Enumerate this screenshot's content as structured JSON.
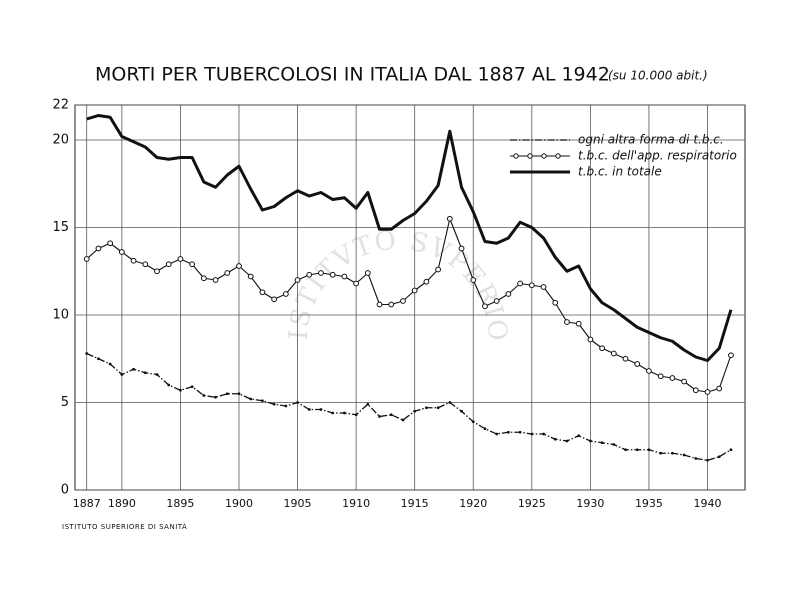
{
  "chart_data": {
    "type": "line",
    "title": "MORTI PER TUBERCOLOSI IN ITALIA DAL 1887 AL 1942",
    "subtitle": "(su 10.000 abit.)",
    "footer": "ISTITUTO SUPERIORE DI SANITÀ",
    "watermark": "ISTITVTO SVPERIORE DI SANITÀ",
    "x": [
      1887,
      1888,
      1889,
      1890,
      1891,
      1892,
      1893,
      1894,
      1895,
      1896,
      1897,
      1898,
      1899,
      1900,
      1901,
      1902,
      1903,
      1904,
      1905,
      1906,
      1907,
      1908,
      1909,
      1910,
      1911,
      1912,
      1913,
      1914,
      1915,
      1916,
      1917,
      1918,
      1919,
      1920,
      1921,
      1922,
      1923,
      1924,
      1925,
      1926,
      1927,
      1928,
      1929,
      1930,
      1931,
      1932,
      1933,
      1934,
      1935,
      1936,
      1937,
      1938,
      1939,
      1940,
      1941,
      1942
    ],
    "series": [
      {
        "name": "ogni altra forma di t.b.c.",
        "color": "#111111",
        "style": "dash-dot",
        "values": [
          7.8,
          7.5,
          7.2,
          6.6,
          6.9,
          6.7,
          6.6,
          6.0,
          5.7,
          5.9,
          5.4,
          5.3,
          5.5,
          5.5,
          5.2,
          5.1,
          4.9,
          4.8,
          5.0,
          4.6,
          4.6,
          4.4,
          4.4,
          4.3,
          4.9,
          4.2,
          4.3,
          4.0,
          4.5,
          4.7,
          4.7,
          5.0,
          4.5,
          3.9,
          3.5,
          3.2,
          3.3,
          3.3,
          3.2,
          3.2,
          2.9,
          2.8,
          3.1,
          2.8,
          2.7,
          2.6,
          2.3,
          2.3,
          2.3,
          2.1,
          2.1,
          2.0,
          1.8,
          1.7,
          1.9,
          2.3
        ]
      },
      {
        "name": "t.b.c. dell'app. respiratorio",
        "color": "#111111",
        "style": "circles",
        "values": [
          13.2,
          13.8,
          14.1,
          13.6,
          13.1,
          12.9,
          12.5,
          12.9,
          13.2,
          12.9,
          12.1,
          12.0,
          12.4,
          12.8,
          12.2,
          11.3,
          10.9,
          11.2,
          12.0,
          12.3,
          12.4,
          12.3,
          12.2,
          11.8,
          12.4,
          10.6,
          10.6,
          10.8,
          11.4,
          11.9,
          12.6,
          15.5,
          13.8,
          12.0,
          10.5,
          10.8,
          11.2,
          11.8,
          11.7,
          11.6,
          10.7,
          9.6,
          9.5,
          8.6,
          8.1,
          7.8,
          7.5,
          7.2,
          6.8,
          6.5,
          6.4,
          6.2,
          5.7,
          5.6,
          5.8,
          7.7
        ]
      },
      {
        "name": "t.b.c. in totale",
        "color": "#111111",
        "style": "thick",
        "values": [
          21.2,
          21.4,
          21.3,
          20.2,
          19.9,
          19.6,
          19.0,
          18.9,
          19.0,
          19.0,
          17.6,
          17.3,
          18.0,
          18.5,
          17.2,
          16.0,
          16.2,
          16.7,
          17.1,
          16.8,
          17.0,
          16.6,
          16.7,
          16.1,
          17.0,
          14.9,
          14.9,
          15.4,
          15.8,
          16.5,
          17.4,
          20.5,
          17.3,
          15.9,
          14.2,
          14.1,
          14.4,
          15.3,
          15.0,
          14.4,
          13.3,
          12.5,
          12.8,
          11.5,
          10.7,
          10.3,
          9.8,
          9.3,
          9.0,
          8.7,
          8.5,
          8.0,
          7.6,
          7.4,
          8.1,
          10.3
        ]
      }
    ],
    "xlim": [
      1886,
      1943.2
    ],
    "xticks": [
      1887,
      1890,
      1895,
      1900,
      1905,
      1910,
      1915,
      1920,
      1925,
      1930,
      1935,
      1940
    ],
    "ylim": [
      0,
      22
    ],
    "yticks": [
      0,
      5,
      10,
      15,
      20,
      22
    ],
    "grid": true,
    "legend": "top-right"
  }
}
